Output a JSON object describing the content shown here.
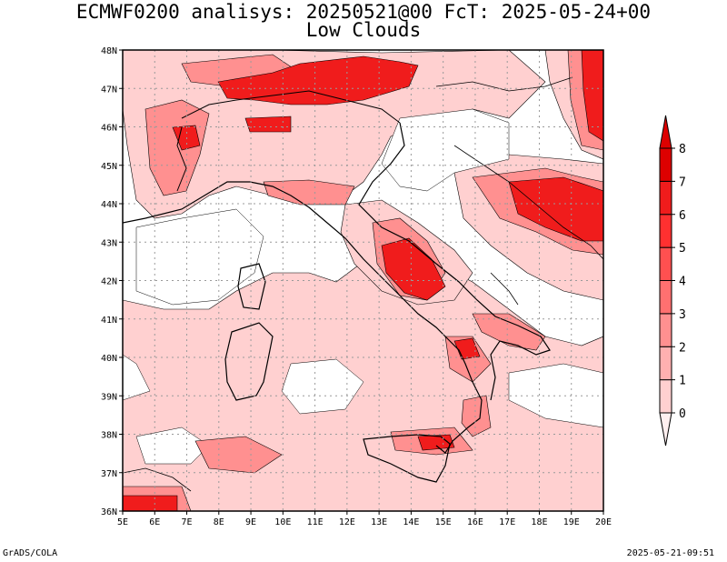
{
  "title": {
    "line1": "ECMWF0200 analisys: 20250521@00 FcT: 2025-05-24+00",
    "line2": "Low Clouds"
  },
  "axes": {
    "lat_ticks": [
      "48N",
      "47N",
      "46N",
      "45N",
      "44N",
      "43N",
      "42N",
      "41N",
      "40N",
      "39N",
      "38N",
      "37N",
      "36N"
    ],
    "lon_ticks": [
      "5E",
      "6E",
      "7E",
      "8E",
      "9E",
      "10E",
      "11E",
      "12E",
      "13E",
      "14E",
      "15E",
      "16E",
      "17E",
      "18E",
      "19E",
      "20E"
    ],
    "lon_range": [
      5,
      20
    ],
    "lat_range": [
      36,
      48
    ],
    "grid": true,
    "grid_style": "dotted"
  },
  "colorbar": {
    "labels": [
      "0",
      "1",
      "2",
      "3",
      "4",
      "5",
      "6",
      "7",
      "8"
    ],
    "colors": [
      "#fff0f0",
      "#ffd0d0",
      "#ffb0b0",
      "#ff9090",
      "#ff7070",
      "#ff5050",
      "#ff3030",
      "#f01c1c",
      "#dd0000"
    ]
  },
  "map_colors": {
    "land_outline": "#000000",
    "contour_line": "#000000"
  },
  "footer": {
    "left": "GrADS/COLA",
    "right": "2025-05-21-09:51"
  }
}
